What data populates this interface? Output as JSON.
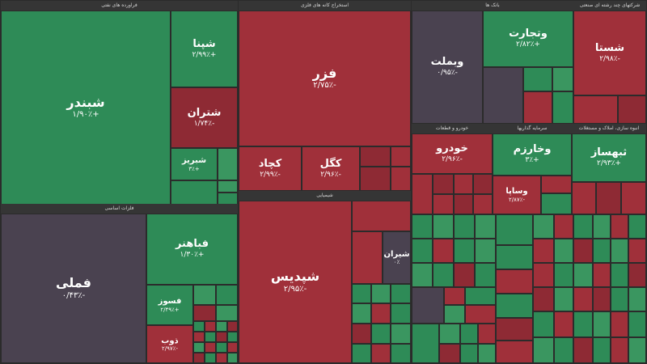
{
  "sectors": {
    "chemical": "فراورده های نفتی",
    "bank": "بانک ها",
    "pharma": "دارویی و مواد",
    "telecom": "استخراج کانه های فلزی",
    "invest": "شرکتهای چند رشته ای صنعتی",
    "metals": "فلزات اساسی",
    "cement": "شیمیایی",
    "auto": "خودرو و قطعات",
    "mining": "سرمایه گذاریها",
    "food": "انبوه سازی، املاک و مستغلات"
  },
  "tiles": {
    "shebandar": {
      "sym": "شبندر",
      "chg": "+۱/۹۰٪"
    },
    "shpna": {
      "sym": "شپنا",
      "chg": "+۲/۹۹٪"
    },
    "shetran": {
      "sym": "شتران",
      "chg": "-۱/۷۴٪"
    },
    "shariz": {
      "sym": "شبریز",
      "chg": "+۳٪"
    },
    "fameli": {
      "sym": "فملی",
      "chg": "-۰/۴۳٪"
    },
    "fabahonar": {
      "sym": "فباهنر",
      "chg": "+۱/۳۰٪"
    },
    "fosoz": {
      "sym": "فسوز",
      "chg": "+۲/۴۹٪"
    },
    "zob": {
      "sym": "ذوب",
      "chg": "-۲/۹۷٪"
    },
    "fazar": {
      "sym": "فزر",
      "chg": "-۲/۷۵٪"
    },
    "kachad": {
      "sym": "کچاد",
      "chg": "-۲/۹۹٪"
    },
    "kegol": {
      "sym": "کگل",
      "chg": "-۲/۹۶٪"
    },
    "shepdis": {
      "sym": "شپدیس",
      "chg": "-۲/۹۵٪"
    },
    "shiran": {
      "sym": "شیران",
      "chg": "۰٪"
    },
    "vbmelat": {
      "sym": "وبملت",
      "chg": "-۰/۹۵٪"
    },
    "vtejarat": {
      "sym": "وتجارت",
      "chg": "+۲/۸۲٪"
    },
    "shasta": {
      "sym": "شستا",
      "chg": "-۲/۹۸٪"
    },
    "khodro": {
      "sym": "خودرو",
      "chg": "-۲/۹۶٪"
    },
    "vkharazm": {
      "sym": "وخارزم",
      "chg": "+۳٪"
    },
    "vsapa": {
      "sym": "وساپا",
      "chg": "-۲/۸۷٪"
    },
    "tnahsaz": {
      "sym": "ثبهساز",
      "chg": "+۲/۹۳٪"
    }
  }
}
